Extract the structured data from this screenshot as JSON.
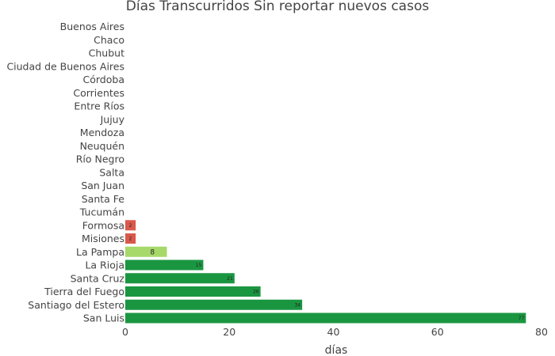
{
  "chart_data": {
    "type": "bar",
    "orientation": "horizontal",
    "title": "Días Transcurridos Sin reportar nuevos casos",
    "xlabel": "días",
    "ylabel": "",
    "xlim": [
      0,
      80
    ],
    "xticks": [
      "0",
      "20",
      "40",
      "60",
      "80"
    ],
    "grid": false,
    "categories": [
      "Buenos Aires",
      "Chaco",
      "Chubut",
      "Ciudad de Buenos Aires",
      "Córdoba",
      "Corrientes",
      "Entre Ríos",
      "Jujuy",
      "Mendoza",
      "Neuquén",
      "Río Negro",
      "Salta",
      "San Juan",
      "Santa Fe",
      "Tucumán",
      "Formosa",
      "Misiones",
      "La Pampa",
      "La Rioja",
      "Santa Cruz",
      "Tierra del Fuego",
      "Santiago del Estero",
      "San Luis"
    ],
    "values": [
      0,
      0,
      0,
      0,
      0,
      0,
      0,
      0,
      0,
      0,
      0,
      0,
      0,
      0,
      0,
      2,
      2,
      8,
      15,
      21,
      26,
      34,
      77
    ],
    "value_labels": [
      "",
      "",
      "",
      "",
      "",
      "",
      "",
      "",
      "",
      "",
      "",
      "",
      "",
      "",
      "",
      "2",
      "2",
      "8",
      "15",
      "21",
      "26",
      "34",
      "77"
    ],
    "colors": [
      "#d9534f",
      "#d9534f",
      "#d9534f",
      "#d9534f",
      "#d9534f",
      "#d9534f",
      "#d9534f",
      "#d9534f",
      "#d9534f",
      "#d9534f",
      "#d9534f",
      "#d9534f",
      "#d9534f",
      "#d9534f",
      "#d9534f",
      "#d9594b",
      "#d9594b",
      "#a6d96a",
      "#1a9641",
      "#1a9641",
      "#1a9641",
      "#1a9641",
      "#1a9641"
    ]
  }
}
